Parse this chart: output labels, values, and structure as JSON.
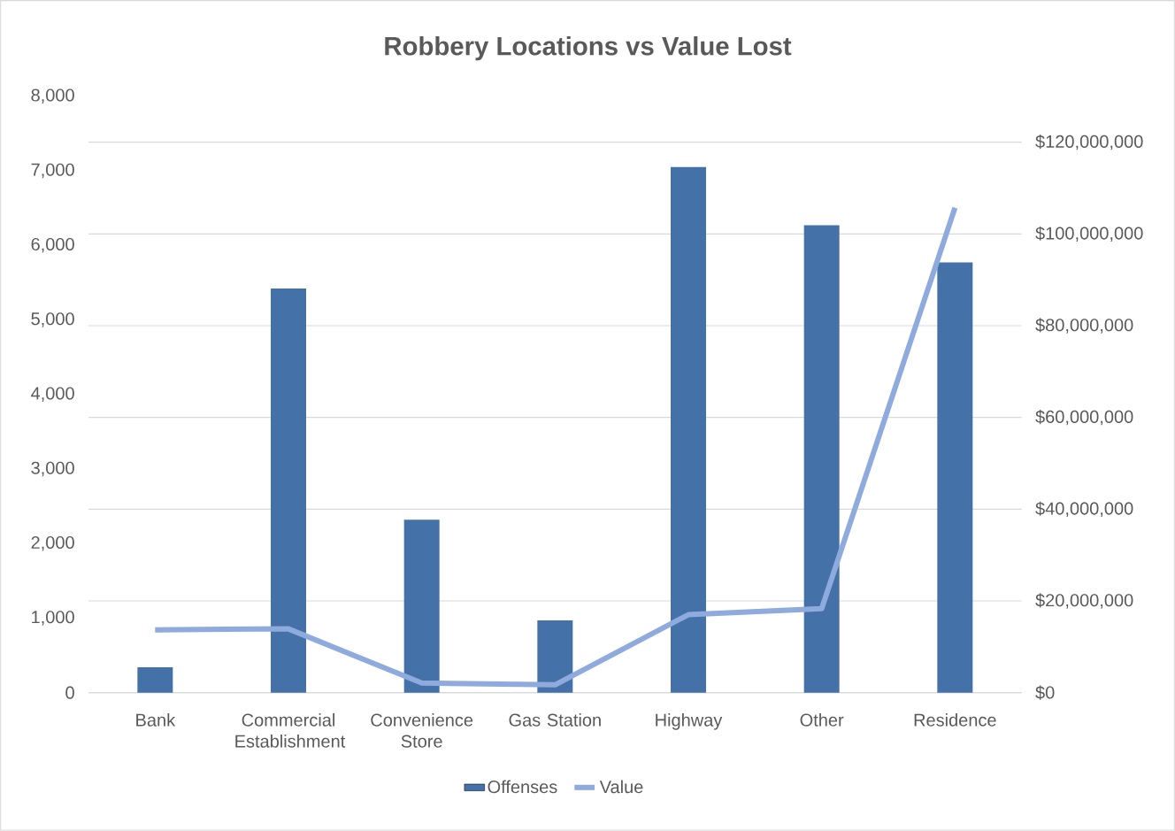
{
  "chart_data": {
    "type": "bar",
    "title": "Robbery Locations vs Value Lost",
    "categories": [
      "Bank",
      "Commercial Establishment",
      "Convenience Store",
      "Gas Station",
      "Highway",
      "Other",
      "Residence"
    ],
    "series": [
      {
        "name": "Offenses",
        "color": "#4472a8",
        "values": [
          340,
          5420,
          2320,
          970,
          7050,
          6270,
          5770
        ]
      },
      {
        "name": "Value",
        "type": "line",
        "axis": "y2",
        "color": "#8faadc",
        "values": [
          13700000,
          13900000,
          2100000,
          1700000,
          17000000,
          18300000,
          105700000
        ]
      }
    ],
    "ylim": [
      0,
      8000
    ],
    "yticks": [
      {
        "value": 0,
        "label": "0"
      },
      {
        "value": 1000,
        "label": "1,000"
      },
      {
        "value": 2000,
        "label": "2,000"
      },
      {
        "value": 3000,
        "label": "3,000"
      },
      {
        "value": 4000,
        "label": "4,000"
      },
      {
        "value": 5000,
        "label": "5,000"
      },
      {
        "value": 6000,
        "label": "6,000"
      },
      {
        "value": 7000,
        "label": "7,000"
      },
      {
        "value": 8000,
        "label": "8,000"
      }
    ],
    "y2lim": [
      0,
      120000000
    ],
    "y2ticks": [
      {
        "value": 0,
        "label": "$0"
      },
      {
        "value": 20000000,
        "label": "$20,000,000"
      },
      {
        "value": 40000000,
        "label": "$40,000,000"
      },
      {
        "value": 60000000,
        "label": "$60,000,000"
      },
      {
        "value": 80000000,
        "label": "$80,000,000"
      },
      {
        "value": 100000000,
        "label": "$100,000,000"
      },
      {
        "value": 120000000,
        "label": "$120,000,000"
      }
    ],
    "grid": true,
    "legend": "bottom"
  }
}
